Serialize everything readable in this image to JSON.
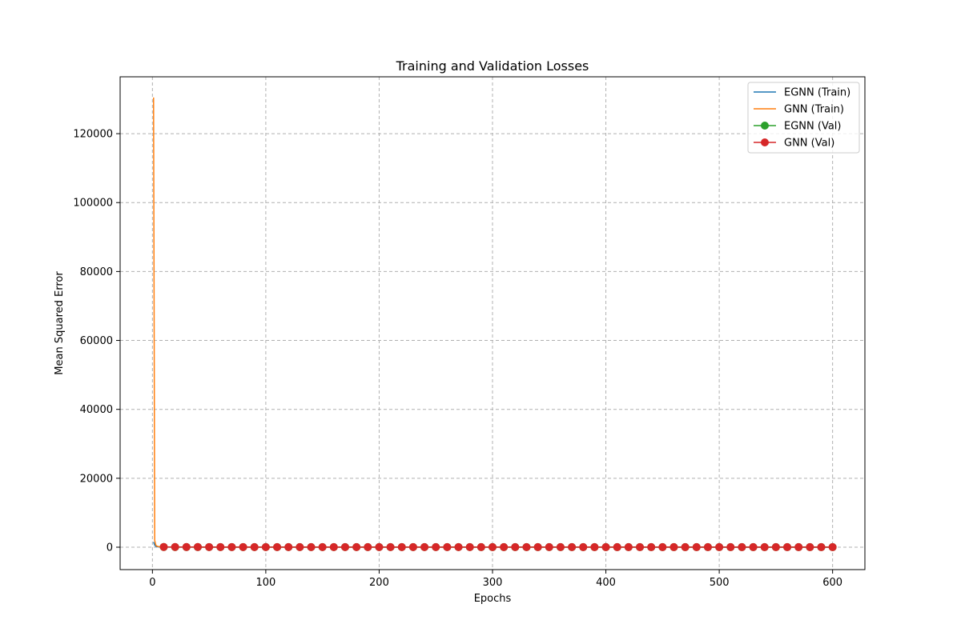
{
  "chart_data": {
    "type": "line",
    "title": "Training and Validation Losses",
    "xlabel": "Epochs",
    "ylabel": "Mean Squared Error",
    "xlim": [
      -28.5,
      628.5
    ],
    "ylim": [
      -6500,
      136500
    ],
    "x_ticks": [
      0,
      100,
      200,
      300,
      400,
      500,
      600
    ],
    "y_ticks": [
      0,
      20000,
      40000,
      60000,
      80000,
      100000,
      120000
    ],
    "grid": true,
    "grid_style": "dashed",
    "legend_position": "top-right",
    "series": [
      {
        "name": "EGNN (Train)",
        "color": "#1f77b4",
        "marker": "none",
        "x": [
          1,
          2,
          3,
          4,
          5,
          6,
          8,
          10,
          15,
          20,
          40,
          100,
          200,
          300,
          400,
          500,
          600
        ],
        "values": [
          1500,
          600,
          250,
          150,
          100,
          80,
          60,
          50,
          40,
          35,
          30,
          25,
          20,
          18,
          16,
          15,
          14
        ]
      },
      {
        "name": "GNN (Train)",
        "color": "#ff7f0e",
        "marker": "none",
        "x": [
          1,
          2,
          3,
          4,
          5,
          6,
          8,
          10,
          15,
          20,
          40,
          100,
          200,
          300,
          400,
          500,
          600
        ],
        "values": [
          130500,
          2000,
          600,
          300,
          200,
          150,
          100,
          80,
          60,
          50,
          40,
          30,
          25,
          22,
          20,
          18,
          17
        ]
      },
      {
        "name": "EGNN (Val)",
        "color": "#2ca02c",
        "marker": "circle",
        "x": [
          10,
          20,
          30,
          40,
          50,
          60,
          70,
          80,
          90,
          100,
          110,
          120,
          130,
          140,
          150,
          160,
          170,
          180,
          190,
          200,
          210,
          220,
          230,
          240,
          250,
          260,
          270,
          280,
          290,
          300,
          310,
          320,
          330,
          340,
          350,
          360,
          370,
          380,
          390,
          400,
          410,
          420,
          430,
          440,
          450,
          460,
          470,
          480,
          490,
          500,
          510,
          520,
          530,
          540,
          550,
          560,
          570,
          580,
          590,
          600
        ],
        "values": [
          45,
          40,
          38,
          36,
          35,
          34,
          33,
          32,
          31,
          30,
          30,
          29,
          29,
          28,
          28,
          27,
          27,
          26,
          26,
          25,
          25,
          25,
          24,
          24,
          24,
          23,
          23,
          23,
          22,
          22,
          22,
          22,
          21,
          21,
          21,
          21,
          20,
          20,
          20,
          20,
          20,
          19,
          19,
          19,
          19,
          19,
          18,
          18,
          18,
          18,
          18,
          18,
          17,
          17,
          17,
          17,
          17,
          17,
          16,
          16
        ]
      },
      {
        "name": "GNN (Val)",
        "color": "#d62728",
        "marker": "circle",
        "x": [
          10,
          20,
          30,
          40,
          50,
          60,
          70,
          80,
          90,
          100,
          110,
          120,
          130,
          140,
          150,
          160,
          170,
          180,
          190,
          200,
          210,
          220,
          230,
          240,
          250,
          260,
          270,
          280,
          290,
          300,
          310,
          320,
          330,
          340,
          350,
          360,
          370,
          380,
          390,
          400,
          410,
          420,
          430,
          440,
          450,
          460,
          470,
          480,
          490,
          500,
          510,
          520,
          530,
          540,
          550,
          560,
          570,
          580,
          590,
          600
        ],
        "values": [
          70,
          55,
          48,
          44,
          41,
          39,
          37,
          36,
          35,
          34,
          33,
          32,
          31,
          31,
          30,
          30,
          29,
          29,
          28,
          28,
          27,
          27,
          27,
          26,
          26,
          26,
          25,
          25,
          25,
          24,
          24,
          24,
          24,
          23,
          23,
          23,
          23,
          22,
          22,
          22,
          22,
          22,
          21,
          21,
          21,
          21,
          21,
          20,
          20,
          20,
          20,
          20,
          20,
          19,
          19,
          19,
          19,
          19,
          19,
          18
        ]
      }
    ]
  }
}
